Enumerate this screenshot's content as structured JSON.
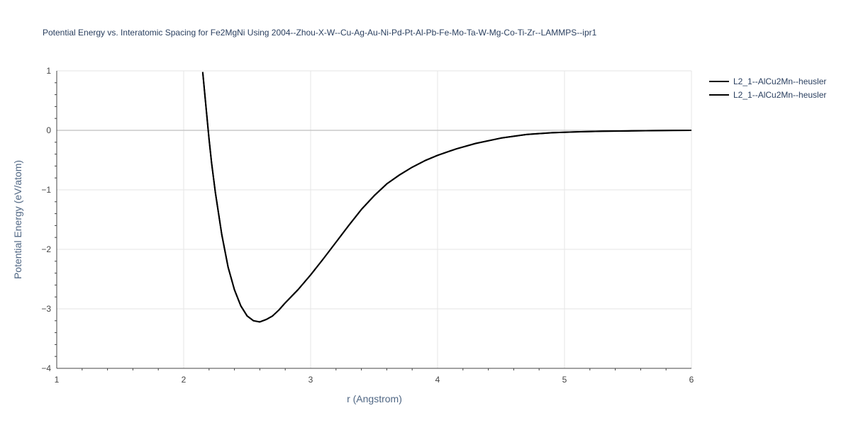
{
  "chart_data": {
    "type": "line",
    "title": "Potential Energy vs. Interatomic Spacing for Fe2MgNi Using 2004--Zhou-X-W--Cu-Ag-Au-Ni-Pd-Pt-Al-Pb-Fe-Mo-Ta-W-Mg-Co-Ti-Zr--LAMMPS--ipr1",
    "xlabel": "r (Angstrom)",
    "ylabel": "Potential Energy (eV/atom)",
    "xlim": [
      1,
      6
    ],
    "ylim": [
      -4,
      1
    ],
    "xticks": [
      1,
      2,
      3,
      4,
      5,
      6
    ],
    "yticks": [
      1,
      0,
      -1,
      -2,
      -3,
      -4
    ],
    "ytick_labels": [
      "1",
      "0",
      "−1",
      "−2",
      "−3",
      "−4"
    ],
    "grid": true,
    "legend_position": "top-right",
    "series": [
      {
        "name": "L2_1--AlCu2Mn--heusler",
        "color": "#000000",
        "x": [
          2.15,
          2.18,
          2.2,
          2.22,
          2.25,
          2.3,
          2.35,
          2.4,
          2.45,
          2.5,
          2.55,
          2.6,
          2.65,
          2.7,
          2.75,
          2.8,
          2.9,
          3.0,
          3.1,
          3.2,
          3.3,
          3.4,
          3.5,
          3.6,
          3.7,
          3.8,
          3.9,
          4.0,
          4.15,
          4.3,
          4.5,
          4.7,
          4.9,
          5.1,
          5.3,
          5.5,
          5.7,
          5.85,
          6.0
        ],
        "y": [
          0.98,
          0.3,
          -0.15,
          -0.55,
          -1.05,
          -1.75,
          -2.3,
          -2.68,
          -2.95,
          -3.12,
          -3.2,
          -3.22,
          -3.18,
          -3.12,
          -3.02,
          -2.9,
          -2.68,
          -2.43,
          -2.16,
          -1.88,
          -1.6,
          -1.33,
          -1.1,
          -0.9,
          -0.75,
          -0.62,
          -0.51,
          -0.42,
          -0.31,
          -0.22,
          -0.13,
          -0.07,
          -0.04,
          -0.025,
          -0.015,
          -0.01,
          -0.005,
          -0.002,
          0.0
        ]
      },
      {
        "name": "L2_1--AlCu2Mn--heusler",
        "color": "#000000",
        "x": [
          2.15,
          2.18,
          2.2,
          2.22,
          2.25,
          2.3,
          2.35,
          2.4,
          2.45,
          2.5,
          2.55,
          2.6,
          2.65,
          2.7,
          2.75,
          2.8,
          2.9,
          3.0,
          3.1,
          3.2,
          3.3,
          3.4,
          3.5,
          3.6,
          3.7,
          3.8,
          3.9,
          4.0,
          4.15,
          4.3,
          4.5,
          4.7,
          4.9,
          5.1,
          5.3,
          5.5,
          5.7,
          5.85,
          6.0
        ],
        "y": [
          0.98,
          0.3,
          -0.15,
          -0.55,
          -1.05,
          -1.75,
          -2.3,
          -2.68,
          -2.95,
          -3.12,
          -3.2,
          -3.22,
          -3.18,
          -3.12,
          -3.02,
          -2.9,
          -2.68,
          -2.43,
          -2.16,
          -1.88,
          -1.6,
          -1.33,
          -1.1,
          -0.9,
          -0.75,
          -0.62,
          -0.51,
          -0.42,
          -0.31,
          -0.22,
          -0.13,
          -0.07,
          -0.04,
          -0.025,
          -0.015,
          -0.01,
          -0.005,
          -0.002,
          0.0
        ]
      }
    ]
  }
}
